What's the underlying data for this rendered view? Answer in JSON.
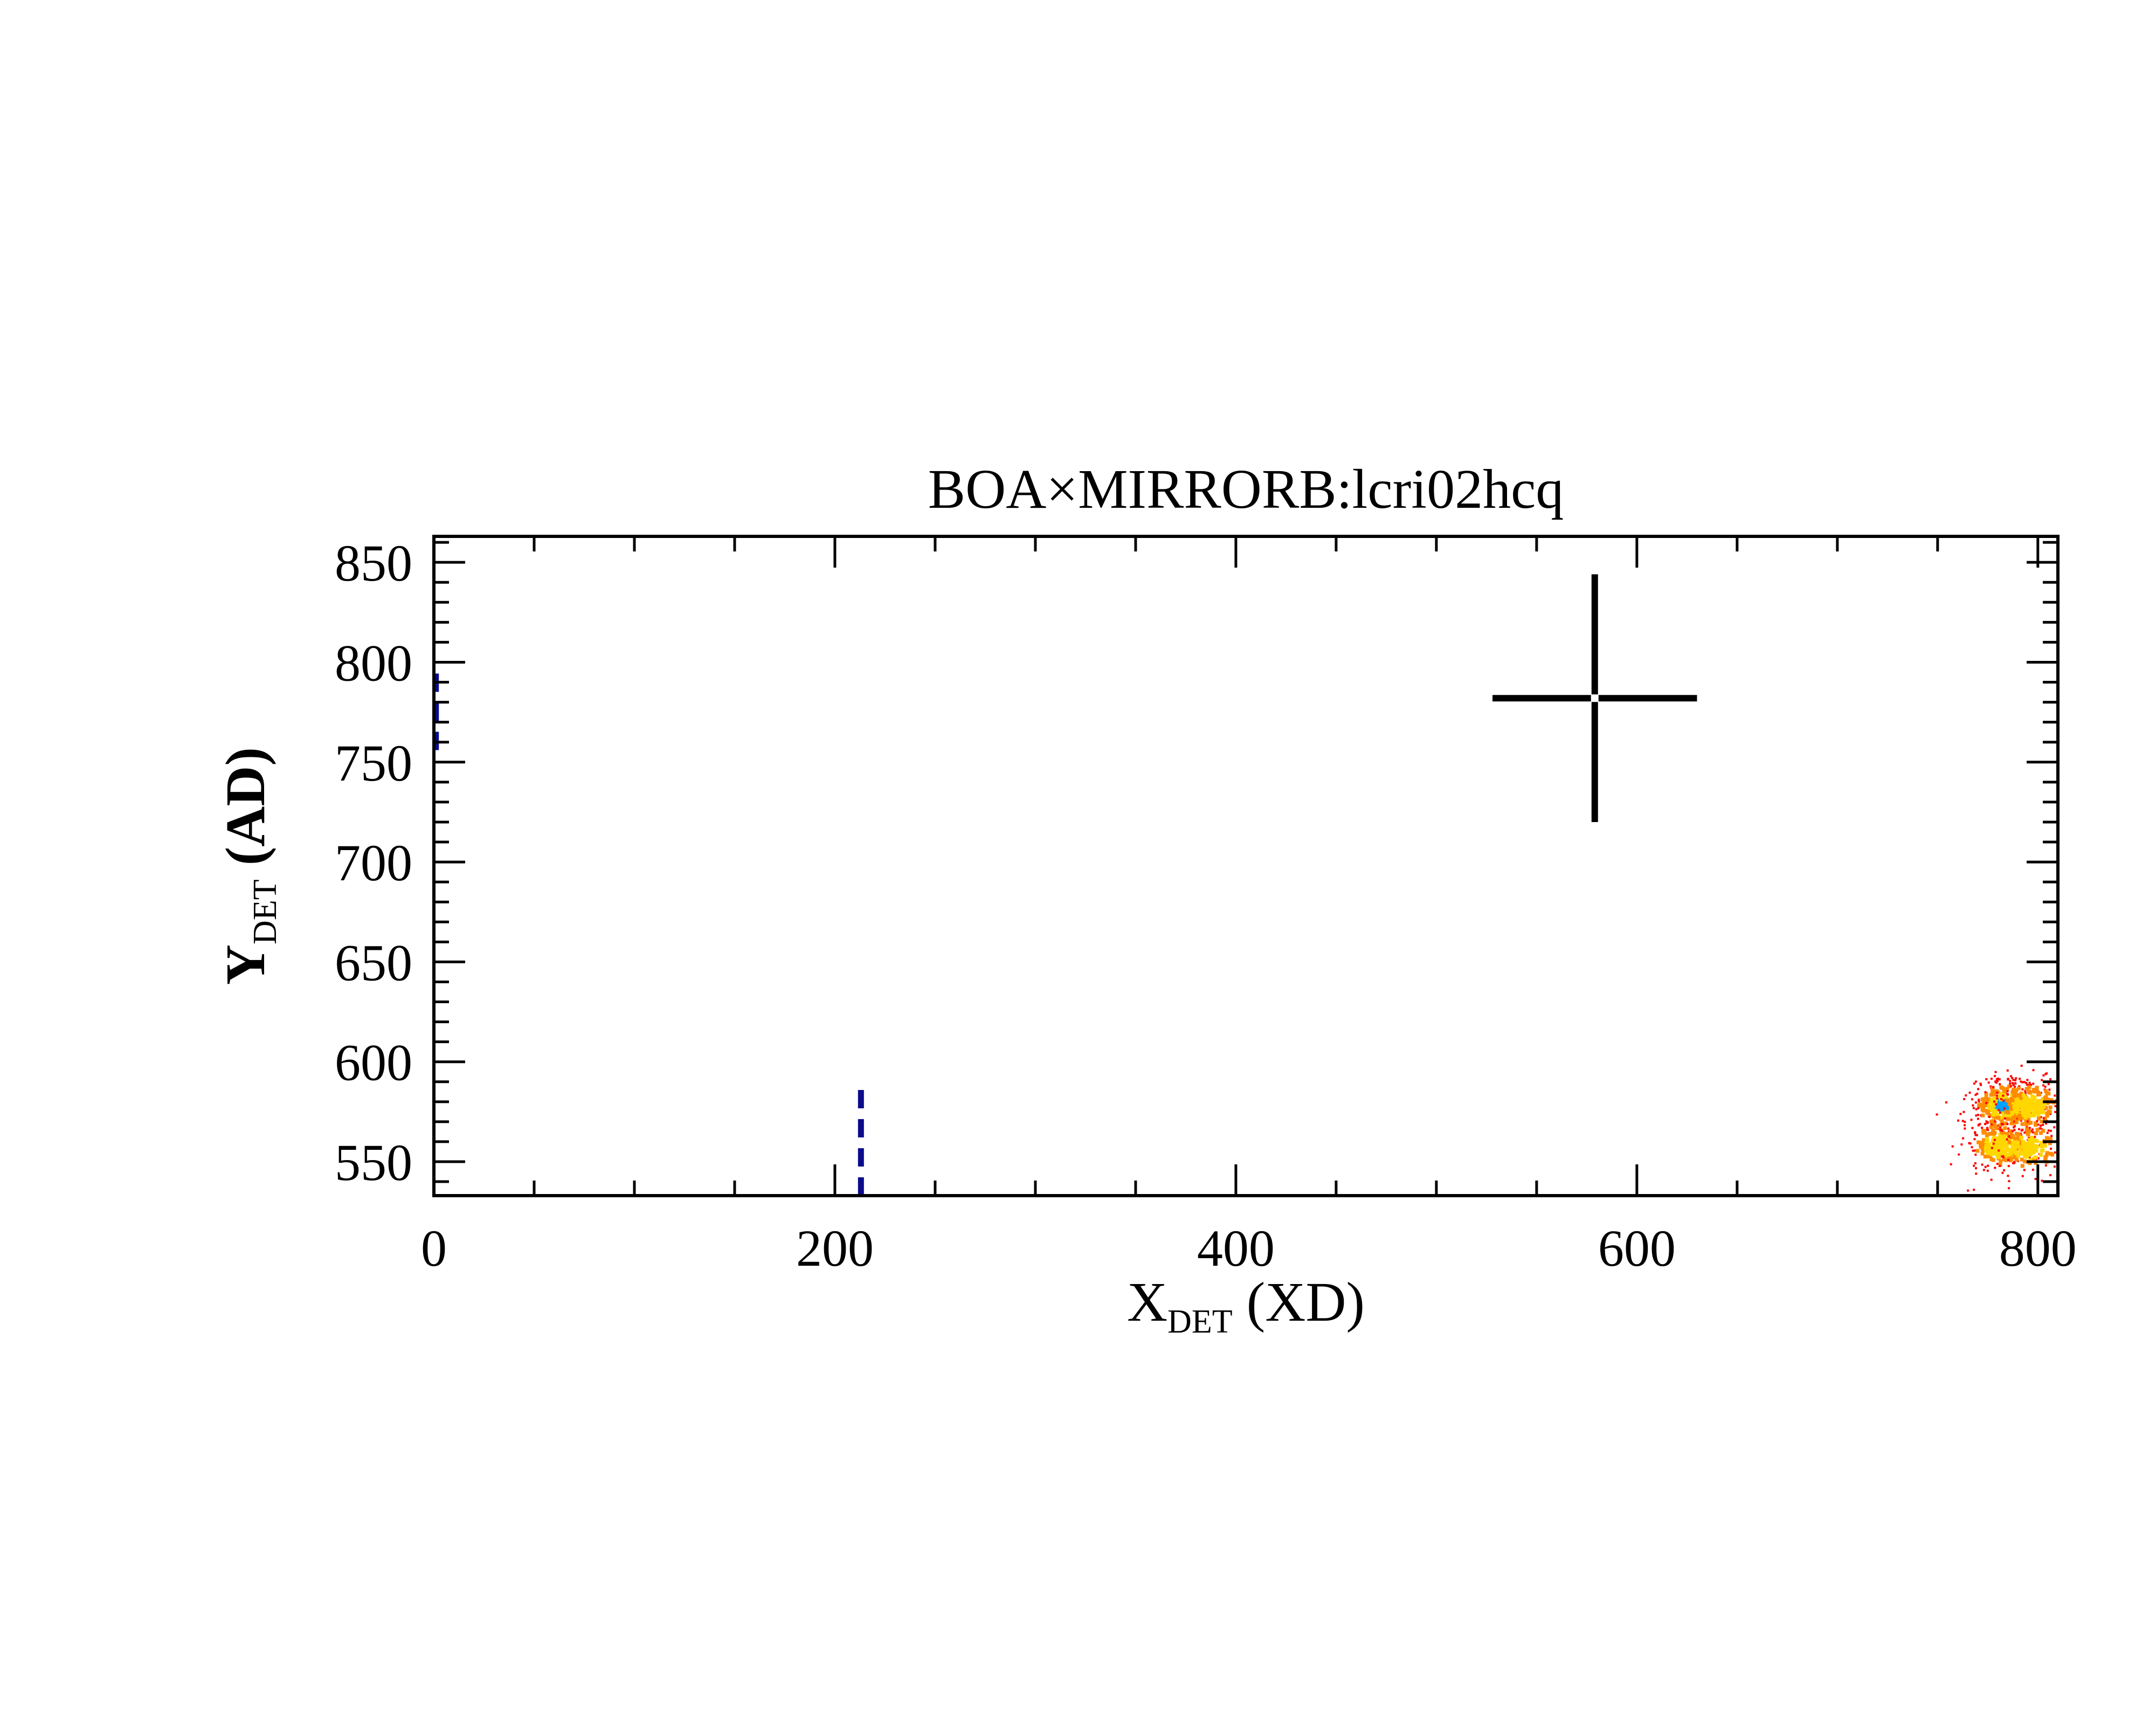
{
  "chart_data": {
    "type": "scatter",
    "title": "BOA×MIRRORB:lcri02hcq",
    "xlabel": {
      "main": "X",
      "sub": "DET",
      "unit": "(XD)"
    },
    "ylabel": {
      "main": "Y",
      "sub": "DET",
      "unit": "(AD)"
    },
    "xlim": [
      0,
      810
    ],
    "ylim": [
      533,
      863
    ],
    "x_ticks": [
      0,
      200,
      400,
      600,
      800
    ],
    "y_ticks": [
      550,
      600,
      650,
      700,
      750,
      800,
      850
    ],
    "grid": false,
    "crosshair": {
      "x": 579,
      "y": 782,
      "x_half_width": 51,
      "y_half_height": 62,
      "color": "#000000"
    },
    "dashed_markers": [
      {
        "x": 1,
        "y_range": [
          756,
          796
        ],
        "color": "#0b0b8c"
      },
      {
        "x": 213,
        "y_range": [
          533,
          590
        ],
        "color": "#0b0b8c"
      }
    ],
    "clusters": [
      {
        "x": 783,
        "y": 578,
        "intensity": "high"
      },
      {
        "x": 781,
        "y": 558,
        "intensity": "medium"
      },
      {
        "x": 796,
        "y": 578,
        "intensity": "medium"
      },
      {
        "x": 796,
        "y": 557,
        "intensity": "low"
      }
    ],
    "colors": {
      "low": "#ff0000",
      "medium": "#ff8c00",
      "high": "#ffd700",
      "peak": "#00a0ff"
    }
  }
}
